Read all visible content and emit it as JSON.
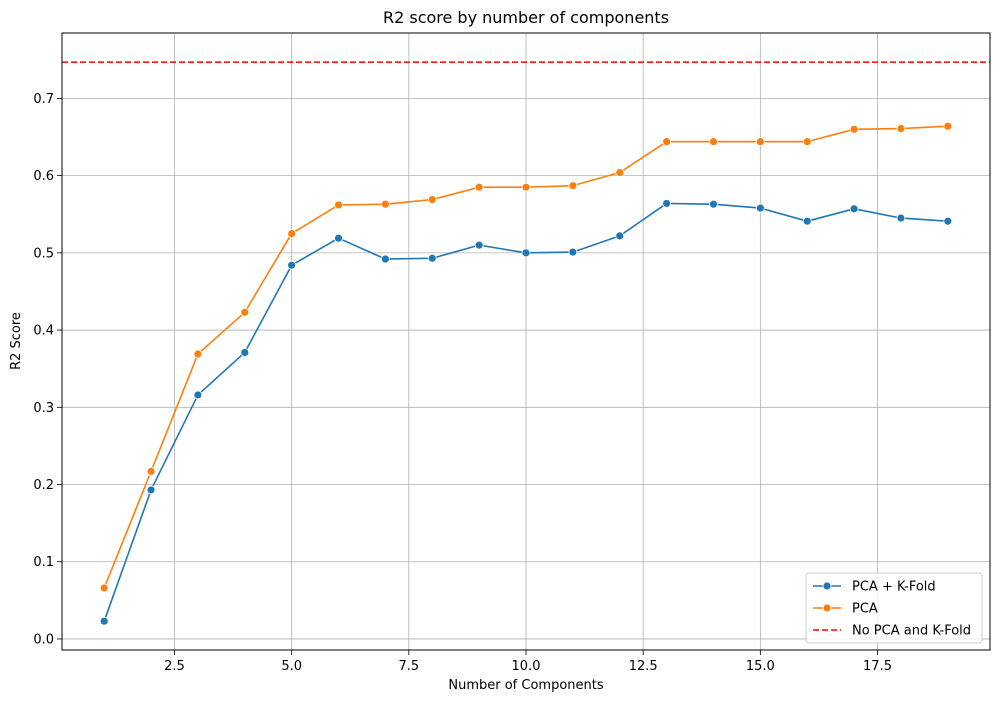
{
  "chart_data": {
    "type": "line",
    "title": "R2 score by number of components",
    "xlabel": "Number of Components",
    "ylabel": "R2 Score",
    "xlim": [
      0.1,
      19.9
    ],
    "ylim": [
      -0.0143,
      0.7847
    ],
    "xticks": [
      2.5,
      5.0,
      7.5,
      10.0,
      12.5,
      15.0,
      17.5
    ],
    "xtick_labels": [
      "2.5",
      "5.0",
      "7.5",
      "10.0",
      "12.5",
      "15.0",
      "17.5"
    ],
    "yticks": [
      0.0,
      0.1,
      0.2,
      0.3,
      0.4,
      0.5,
      0.6,
      0.7
    ],
    "ytick_labels": [
      "0.0",
      "0.1",
      "0.2",
      "0.3",
      "0.4",
      "0.5",
      "0.6",
      "0.7"
    ],
    "grid": true,
    "legend_position": "bottom-right",
    "x": [
      1,
      2,
      3,
      4,
      5,
      6,
      7,
      8,
      9,
      10,
      11,
      12,
      13,
      14,
      15,
      16,
      17,
      18,
      19
    ],
    "series": [
      {
        "name": "PCA + K-Fold",
        "color": "#1f77b4",
        "style": "solid-marker",
        "values": [
          0.023,
          0.193,
          0.316,
          0.371,
          0.484,
          0.519,
          0.492,
          0.493,
          0.51,
          0.5,
          0.501,
          0.522,
          0.564,
          0.563,
          0.558,
          0.541,
          0.557,
          0.545,
          0.541
        ]
      },
      {
        "name": "PCA",
        "color": "#ff7f0e",
        "style": "solid-marker",
        "values": [
          0.066,
          0.217,
          0.369,
          0.423,
          0.525,
          0.562,
          0.563,
          0.569,
          0.585,
          0.585,
          0.587,
          0.604,
          0.644,
          0.644,
          0.644,
          0.644,
          0.66,
          0.661,
          0.664
        ]
      },
      {
        "name": "No PCA and K-Fold",
        "color": "#ff0000",
        "style": "dashed-hline",
        "value": 0.747
      }
    ]
  }
}
